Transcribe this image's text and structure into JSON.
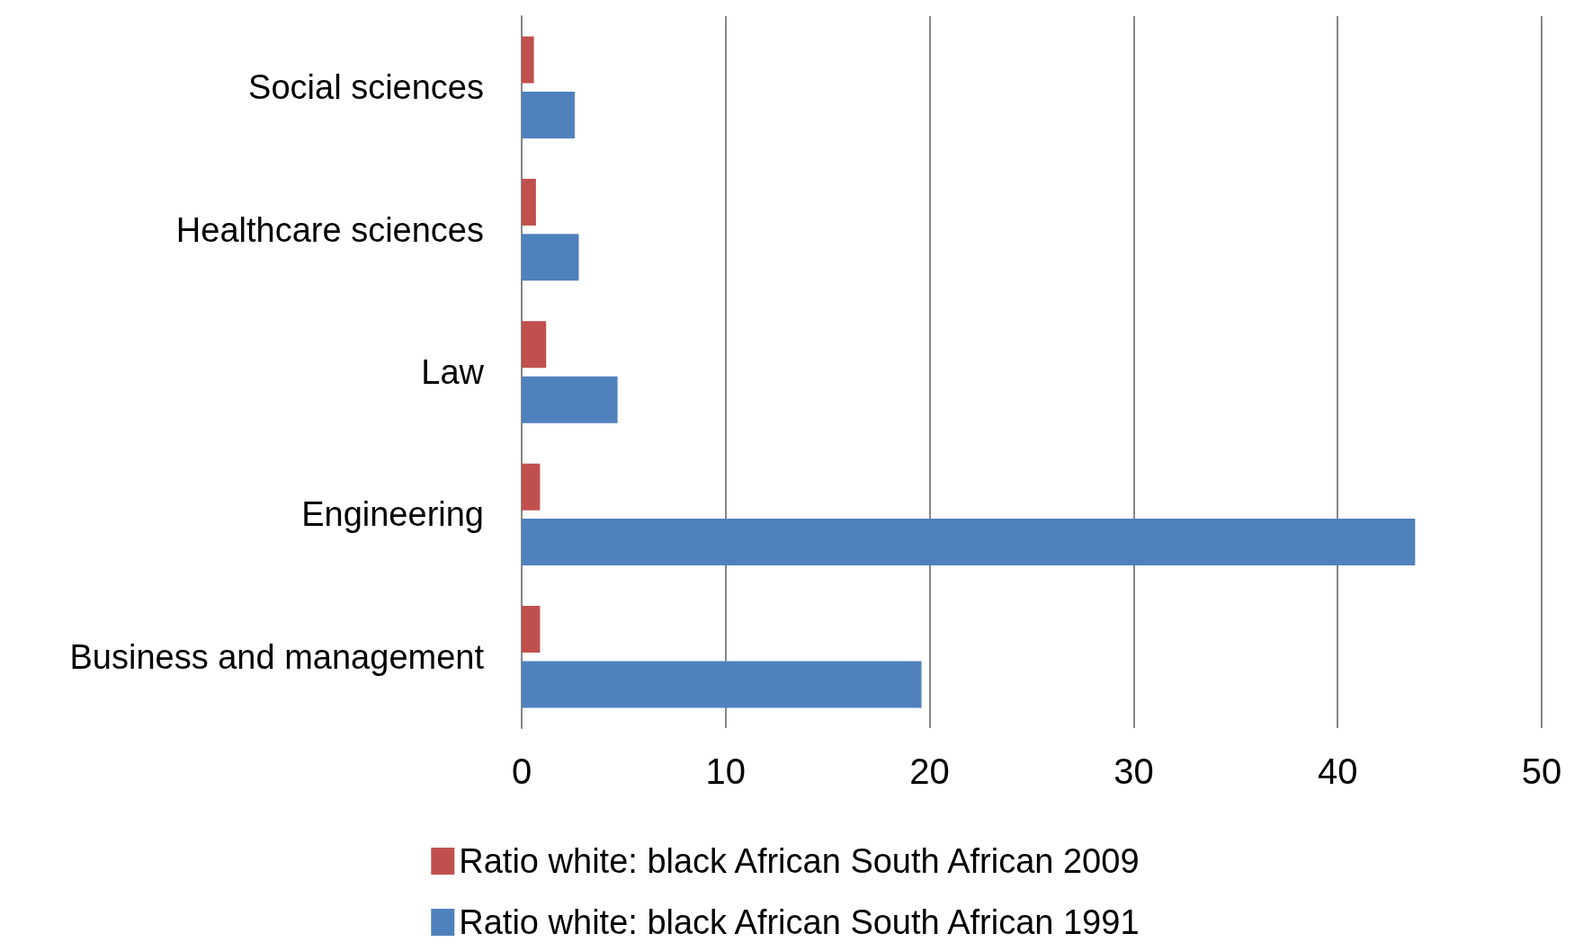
{
  "chart_data": {
    "type": "bar",
    "orientation": "horizontal",
    "categories": [
      "Social sciences",
      "Healthcare sciences",
      "Law",
      "Engineering",
      "Business and management"
    ],
    "series": [
      {
        "name": "Ratio white: black African South African 2009",
        "color": "#c0504d",
        "values": [
          0.6,
          0.7,
          1.2,
          0.9,
          0.9
        ]
      },
      {
        "name": "Ratio white: black African South African 1991",
        "color": "#4f81bd",
        "values": [
          2.6,
          2.8,
          4.7,
          43.8,
          19.6
        ]
      }
    ],
    "xlim": [
      0,
      50
    ],
    "xticks": [
      0,
      10,
      20,
      30,
      40,
      50
    ],
    "grid": "x",
    "legend": "bottom"
  }
}
